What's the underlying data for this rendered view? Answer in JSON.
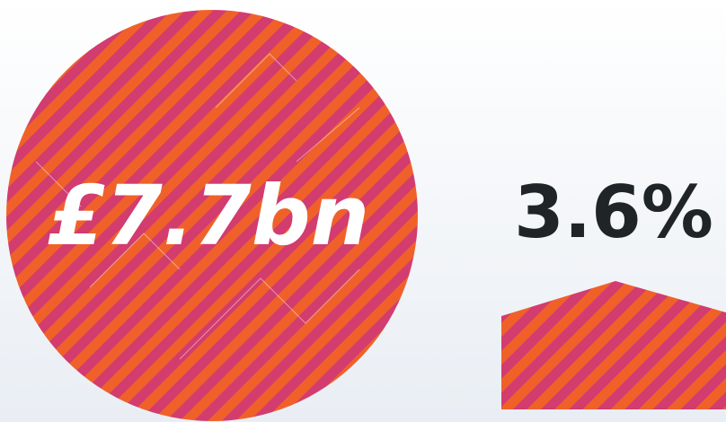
{
  "stats": [
    {
      "label": "£7.7bn"
    },
    {
      "label": "3.6%"
    }
  ]
}
